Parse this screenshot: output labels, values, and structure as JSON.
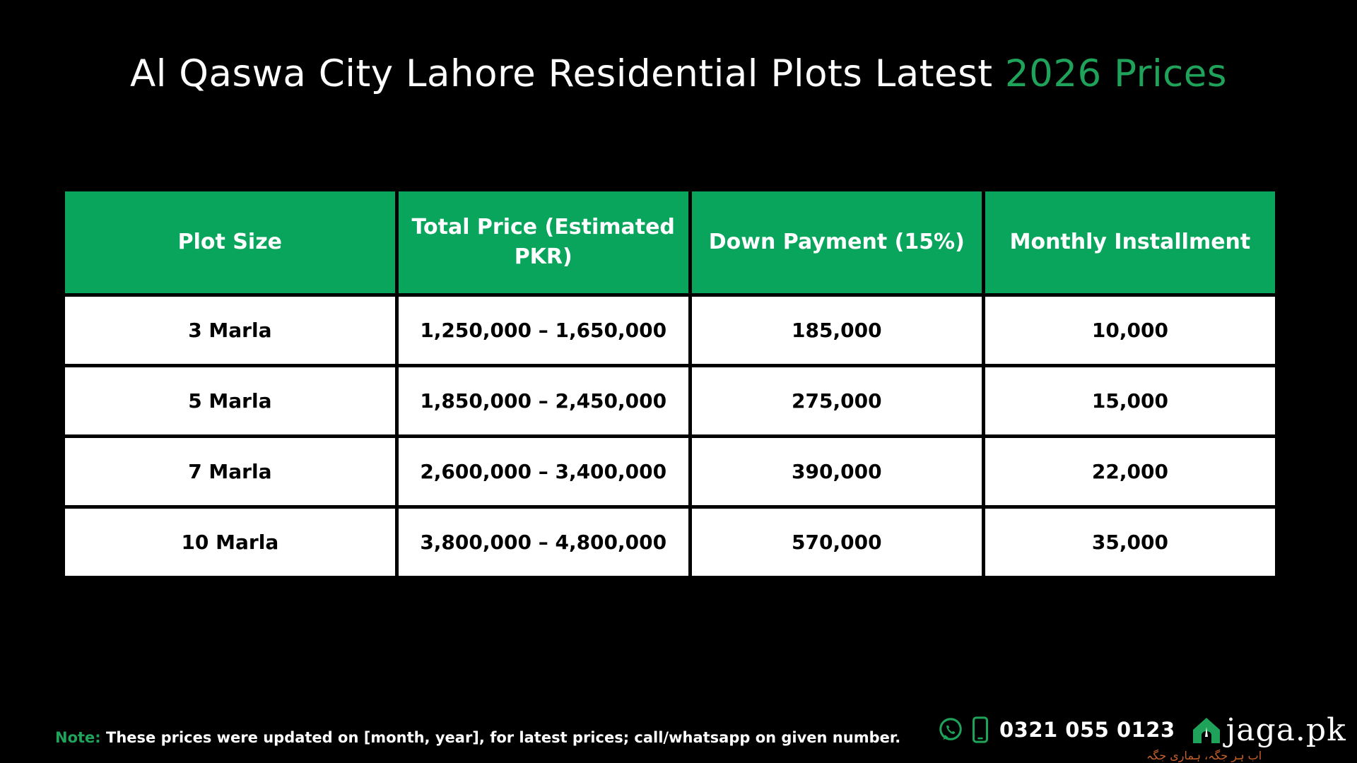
{
  "title": {
    "prefix": "Al Qaswa City Lahore Residential Plots Latest",
    "accent": "2026 Prices",
    "accent_color": "#1fa35a"
  },
  "table": {
    "header_color": "#0aa55d",
    "headers": [
      "Plot Size",
      "Total Price (Estimated PKR)",
      "Down Payment (15%)",
      "Monthly Installment"
    ],
    "rows": [
      [
        "3 Marla",
        "1,250,000 – 1,650,000",
        "185,000",
        "10,000"
      ],
      [
        "5 Marla",
        "1,850,000 – 2,450,000",
        "275,000",
        "15,000"
      ],
      [
        "7 Marla",
        "2,600,000 – 3,400,000",
        "390,000",
        "22,000"
      ],
      [
        "10 Marla",
        "3,800,000 – 4,800,000",
        "570,000",
        "35,000"
      ]
    ]
  },
  "note": {
    "label": "Note:",
    "text": "These prices were updated on [month, year], for latest prices; call/whatsapp on given number."
  },
  "contact": {
    "icons": [
      "whatsapp-icon",
      "mobile-phone-icon"
    ],
    "phone": "0321 055 0123"
  },
  "brand": {
    "icon": "house-logo-icon",
    "name": "jaga.pk",
    "tagline": "اب ہر جگہ، ہماری جگہ"
  }
}
